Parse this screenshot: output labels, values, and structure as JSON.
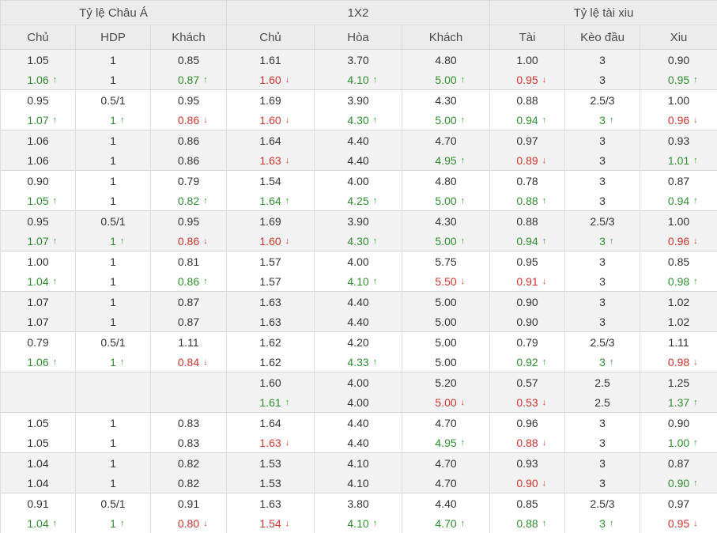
{
  "headers": {
    "groups": [
      "Tỷ lệ Châu Á",
      "1X2",
      "Tỷ lệ tài xiu"
    ],
    "columns": [
      "Chủ",
      "HDP",
      "Khách",
      "Chủ",
      "Hòa",
      "Khách",
      "Tài",
      "Kèo đầu",
      "Xiu"
    ]
  },
  "colors": {
    "up": "#2f8f2f",
    "down": "#d0342c",
    "zebra": "#f2f2f2",
    "header": "#ececec"
  },
  "icons": {
    "up": "↑",
    "down": "↓"
  },
  "groups": [
    [
      [
        {
          "v": "1.05"
        },
        {
          "v": "1"
        },
        {
          "v": "0.85"
        },
        {
          "v": "1.61"
        },
        {
          "v": "3.70"
        },
        {
          "v": "4.80"
        },
        {
          "v": "1.00"
        },
        {
          "v": "3"
        },
        {
          "v": "0.90"
        }
      ],
      [
        {
          "v": "1.06",
          "t": "up"
        },
        {
          "v": "1"
        },
        {
          "v": "0.87",
          "t": "up"
        },
        {
          "v": "1.60",
          "t": "down"
        },
        {
          "v": "4.10",
          "t": "up"
        },
        {
          "v": "5.00",
          "t": "up"
        },
        {
          "v": "0.95",
          "t": "down"
        },
        {
          "v": "3"
        },
        {
          "v": "0.95",
          "t": "up"
        }
      ]
    ],
    [
      [
        {
          "v": "0.95"
        },
        {
          "v": "0.5/1"
        },
        {
          "v": "0.95"
        },
        {
          "v": "1.69"
        },
        {
          "v": "3.90"
        },
        {
          "v": "4.30"
        },
        {
          "v": "0.88"
        },
        {
          "v": "2.5/3"
        },
        {
          "v": "1.00"
        }
      ],
      [
        {
          "v": "1.07",
          "t": "up"
        },
        {
          "v": "1",
          "t": "up"
        },
        {
          "v": "0.86",
          "t": "down"
        },
        {
          "v": "1.60",
          "t": "down"
        },
        {
          "v": "4.30",
          "t": "up"
        },
        {
          "v": "5.00",
          "t": "up"
        },
        {
          "v": "0.94",
          "t": "up"
        },
        {
          "v": "3",
          "t": "up"
        },
        {
          "v": "0.96",
          "t": "down"
        }
      ]
    ],
    [
      [
        {
          "v": "1.06"
        },
        {
          "v": "1"
        },
        {
          "v": "0.86"
        },
        {
          "v": "1.64"
        },
        {
          "v": "4.40"
        },
        {
          "v": "4.70"
        },
        {
          "v": "0.97"
        },
        {
          "v": "3"
        },
        {
          "v": "0.93"
        }
      ],
      [
        {
          "v": "1.06"
        },
        {
          "v": "1"
        },
        {
          "v": "0.86"
        },
        {
          "v": "1.63",
          "t": "down"
        },
        {
          "v": "4.40"
        },
        {
          "v": "4.95",
          "t": "up"
        },
        {
          "v": "0.89",
          "t": "down"
        },
        {
          "v": "3"
        },
        {
          "v": "1.01",
          "t": "up"
        }
      ]
    ],
    [
      [
        {
          "v": "0.90"
        },
        {
          "v": "1"
        },
        {
          "v": "0.79"
        },
        {
          "v": "1.54"
        },
        {
          "v": "4.00"
        },
        {
          "v": "4.80"
        },
        {
          "v": "0.78"
        },
        {
          "v": "3"
        },
        {
          "v": "0.87"
        }
      ],
      [
        {
          "v": "1.05",
          "t": "up"
        },
        {
          "v": "1"
        },
        {
          "v": "0.82",
          "t": "up"
        },
        {
          "v": "1.64",
          "t": "up"
        },
        {
          "v": "4.25",
          "t": "up"
        },
        {
          "v": "5.00",
          "t": "up"
        },
        {
          "v": "0.88",
          "t": "up"
        },
        {
          "v": "3"
        },
        {
          "v": "0.94",
          "t": "up"
        }
      ]
    ],
    [
      [
        {
          "v": "0.95"
        },
        {
          "v": "0.5/1"
        },
        {
          "v": "0.95"
        },
        {
          "v": "1.69"
        },
        {
          "v": "3.90"
        },
        {
          "v": "4.30"
        },
        {
          "v": "0.88"
        },
        {
          "v": "2.5/3"
        },
        {
          "v": "1.00"
        }
      ],
      [
        {
          "v": "1.07",
          "t": "up"
        },
        {
          "v": "1",
          "t": "up"
        },
        {
          "v": "0.86",
          "t": "down"
        },
        {
          "v": "1.60",
          "t": "down"
        },
        {
          "v": "4.30",
          "t": "up"
        },
        {
          "v": "5.00",
          "t": "up"
        },
        {
          "v": "0.94",
          "t": "up"
        },
        {
          "v": "3",
          "t": "up"
        },
        {
          "v": "0.96",
          "t": "down"
        }
      ]
    ],
    [
      [
        {
          "v": "1.00"
        },
        {
          "v": "1"
        },
        {
          "v": "0.81"
        },
        {
          "v": "1.57"
        },
        {
          "v": "4.00"
        },
        {
          "v": "5.75"
        },
        {
          "v": "0.95"
        },
        {
          "v": "3"
        },
        {
          "v": "0.85"
        }
      ],
      [
        {
          "v": "1.04",
          "t": "up"
        },
        {
          "v": "1"
        },
        {
          "v": "0.86",
          "t": "up"
        },
        {
          "v": "1.57"
        },
        {
          "v": "4.10",
          "t": "up"
        },
        {
          "v": "5.50",
          "t": "down"
        },
        {
          "v": "0.91",
          "t": "down"
        },
        {
          "v": "3"
        },
        {
          "v": "0.98",
          "t": "up"
        }
      ]
    ],
    [
      [
        {
          "v": "1.07"
        },
        {
          "v": "1"
        },
        {
          "v": "0.87"
        },
        {
          "v": "1.63"
        },
        {
          "v": "4.40"
        },
        {
          "v": "5.00"
        },
        {
          "v": "0.90"
        },
        {
          "v": "3"
        },
        {
          "v": "1.02"
        }
      ],
      [
        {
          "v": "1.07"
        },
        {
          "v": "1"
        },
        {
          "v": "0.87"
        },
        {
          "v": "1.63"
        },
        {
          "v": "4.40"
        },
        {
          "v": "5.00"
        },
        {
          "v": "0.90"
        },
        {
          "v": "3"
        },
        {
          "v": "1.02"
        }
      ]
    ],
    [
      [
        {
          "v": "0.79"
        },
        {
          "v": "0.5/1"
        },
        {
          "v": "1.11"
        },
        {
          "v": "1.62"
        },
        {
          "v": "4.20"
        },
        {
          "v": "5.00"
        },
        {
          "v": "0.79"
        },
        {
          "v": "2.5/3"
        },
        {
          "v": "1.11"
        }
      ],
      [
        {
          "v": "1.06",
          "t": "up"
        },
        {
          "v": "1",
          "t": "up"
        },
        {
          "v": "0.84",
          "t": "down"
        },
        {
          "v": "1.62"
        },
        {
          "v": "4.33",
          "t": "up"
        },
        {
          "v": "5.00"
        },
        {
          "v": "0.92",
          "t": "up"
        },
        {
          "v": "3",
          "t": "up"
        },
        {
          "v": "0.98",
          "t": "down"
        }
      ]
    ],
    [
      [
        {
          "v": ""
        },
        {
          "v": ""
        },
        {
          "v": ""
        },
        {
          "v": "1.60"
        },
        {
          "v": "4.00"
        },
        {
          "v": "5.20"
        },
        {
          "v": "0.57"
        },
        {
          "v": "2.5"
        },
        {
          "v": "1.25"
        }
      ],
      [
        {
          "v": ""
        },
        {
          "v": ""
        },
        {
          "v": ""
        },
        {
          "v": "1.61",
          "t": "up"
        },
        {
          "v": "4.00"
        },
        {
          "v": "5.00",
          "t": "down"
        },
        {
          "v": "0.53",
          "t": "down"
        },
        {
          "v": "2.5"
        },
        {
          "v": "1.37",
          "t": "up"
        }
      ]
    ],
    [
      [
        {
          "v": "1.05"
        },
        {
          "v": "1"
        },
        {
          "v": "0.83"
        },
        {
          "v": "1.64"
        },
        {
          "v": "4.40"
        },
        {
          "v": "4.70"
        },
        {
          "v": "0.96"
        },
        {
          "v": "3"
        },
        {
          "v": "0.90"
        }
      ],
      [
        {
          "v": "1.05"
        },
        {
          "v": "1"
        },
        {
          "v": "0.83"
        },
        {
          "v": "1.63",
          "t": "down"
        },
        {
          "v": "4.40"
        },
        {
          "v": "4.95",
          "t": "up"
        },
        {
          "v": "0.88",
          "t": "down"
        },
        {
          "v": "3"
        },
        {
          "v": "1.00",
          "t": "up"
        }
      ]
    ],
    [
      [
        {
          "v": "1.04"
        },
        {
          "v": "1"
        },
        {
          "v": "0.82"
        },
        {
          "v": "1.53"
        },
        {
          "v": "4.10"
        },
        {
          "v": "4.70"
        },
        {
          "v": "0.93"
        },
        {
          "v": "3"
        },
        {
          "v": "0.87"
        }
      ],
      [
        {
          "v": "1.04"
        },
        {
          "v": "1"
        },
        {
          "v": "0.82"
        },
        {
          "v": "1.53"
        },
        {
          "v": "4.10"
        },
        {
          "v": "4.70"
        },
        {
          "v": "0.90",
          "t": "down"
        },
        {
          "v": "3"
        },
        {
          "v": "0.90",
          "t": "up"
        }
      ]
    ],
    [
      [
        {
          "v": "0.91"
        },
        {
          "v": "0.5/1"
        },
        {
          "v": "0.91"
        },
        {
          "v": "1.63"
        },
        {
          "v": "3.80"
        },
        {
          "v": "4.40"
        },
        {
          "v": "0.85"
        },
        {
          "v": "2.5/3"
        },
        {
          "v": "0.97"
        }
      ],
      [
        {
          "v": "1.04",
          "t": "up"
        },
        {
          "v": "1",
          "t": "up"
        },
        {
          "v": "0.80",
          "t": "down"
        },
        {
          "v": "1.54",
          "t": "down"
        },
        {
          "v": "4.10",
          "t": "up"
        },
        {
          "v": "4.70",
          "t": "up"
        },
        {
          "v": "0.88",
          "t": "up"
        },
        {
          "v": "3",
          "t": "up"
        },
        {
          "v": "0.95",
          "t": "down"
        }
      ]
    ]
  ]
}
